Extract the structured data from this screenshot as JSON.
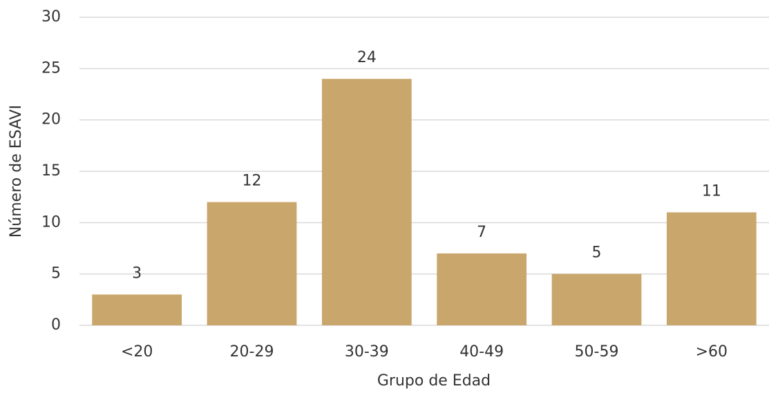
{
  "chart_data": {
    "type": "bar",
    "x_label": "Grupo de Edad",
    "y_label": "Número de ESAVI",
    "categories": [
      "<20",
      "20-29",
      "30-39",
      "40-49",
      "50-59",
      ">60"
    ],
    "values": [
      3,
      12,
      24,
      7,
      5,
      11
    ],
    "color": "#c9a66b",
    "ylim": [
      0,
      30
    ],
    "yticks": [
      0,
      5,
      10,
      15,
      20,
      25,
      30
    ],
    "grid": true
  }
}
